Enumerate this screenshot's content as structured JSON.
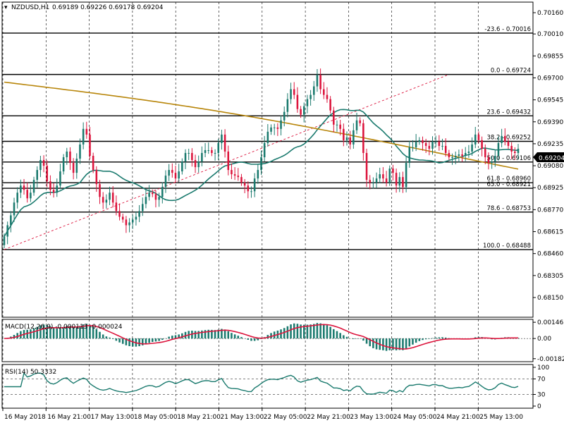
{
  "chart_data": {
    "type": "candlestick",
    "symbol_label": "NZDUSD,H1",
    "ohlc_header": "0.69189 0.69226 0.69178 0.69204",
    "current_price": "0.69204",
    "price_axis": {
      "min": 0.6815,
      "max": 0.7016,
      "ticks": [
        "0.70160",
        "0.70010",
        "0.69855",
        "0.69700",
        "0.69545",
        "0.69390",
        "0.69235",
        "0.69080",
        "0.68925",
        "0.68770",
        "0.68615",
        "0.68460",
        "0.68305",
        "0.68150"
      ],
      "grid": true
    },
    "time_axis": {
      "labels": [
        "16 May 2018",
        "16 May 21:00",
        "17 May 13:00",
        "18 May 05:00",
        "18 May 21:00",
        "21 May 13:00",
        "22 May 05:00",
        "22 May 21:00",
        "23 May 13:00",
        "24 May 05:00",
        "24 May 21:00",
        "25 May 13:00"
      ]
    },
    "fibonacci": {
      "levels": [
        {
          "text": "-23.6 - 0.70016",
          "value": 0.70016
        },
        {
          "text": "0.0 - 0.69724",
          "value": 0.69724
        },
        {
          "text": "23.6 - 0.69432",
          "value": 0.69432
        },
        {
          "text": "38.2 - 0.69252",
          "value": 0.69252
        },
        {
          "text": "50.0 - 0.69106",
          "value": 0.69106
        },
        {
          "text": "61.8 - 0.68960",
          "value": 0.6896
        },
        {
          "text": "65.0 - 0.68921",
          "value": 0.68921
        },
        {
          "text": "78.6 - 0.68753",
          "value": 0.68753
        },
        {
          "text": "100.0 - 0.68488",
          "value": 0.68488
        }
      ],
      "trendline": {
        "from": {
          "bar": 0,
          "price": 0.68488
        },
        "to": {
          "bar": 135,
          "price": 0.69724
        }
      }
    },
    "closes": [
      0.6858,
      0.6866,
      0.6873,
      0.6882,
      0.6889,
      0.6894,
      0.6891,
      0.6885,
      0.6889,
      0.6898,
      0.6905,
      0.6912,
      0.6908,
      0.6897,
      0.6891,
      0.6889,
      0.6894,
      0.6904,
      0.6914,
      0.6918,
      0.691,
      0.6903,
      0.6913,
      0.6923,
      0.6934,
      0.693,
      0.6915,
      0.6905,
      0.6895,
      0.6886,
      0.6882,
      0.6884,
      0.6889,
      0.6882,
      0.6876,
      0.6872,
      0.687,
      0.6866,
      0.6868,
      0.687,
      0.6872,
      0.6876,
      0.6881,
      0.6886,
      0.6889,
      0.6888,
      0.6884,
      0.6886,
      0.6893,
      0.6901,
      0.6905,
      0.6903,
      0.6899,
      0.6904,
      0.6911,
      0.6917,
      0.6917,
      0.6912,
      0.6907,
      0.6911,
      0.6917,
      0.6919,
      0.6919,
      0.6917,
      0.6917,
      0.6924,
      0.693,
      0.6918,
      0.6905,
      0.6902,
      0.6901,
      0.69,
      0.6896,
      0.6894,
      0.689,
      0.689,
      0.6899,
      0.6905,
      0.6914,
      0.6924,
      0.6932,
      0.6935,
      0.6935,
      0.6934,
      0.694,
      0.6946,
      0.6955,
      0.6962,
      0.6958,
      0.6948,
      0.6944,
      0.695,
      0.6955,
      0.6958,
      0.6964,
      0.6972,
      0.6962,
      0.6958,
      0.6955,
      0.6947,
      0.6937,
      0.6937,
      0.6934,
      0.6926,
      0.6928,
      0.6923,
      0.6933,
      0.694,
      0.6938,
      0.6917,
      0.6898,
      0.6896,
      0.6896,
      0.6899,
      0.6902,
      0.6899,
      0.6896,
      0.6906,
      0.6903,
      0.6894,
      0.69,
      0.6893,
      0.691,
      0.6921,
      0.6921,
      0.6925,
      0.6926,
      0.6924,
      0.6922,
      0.692,
      0.6925,
      0.6925,
      0.6922,
      0.6922,
      0.6917,
      0.6914,
      0.6914,
      0.6915,
      0.6916,
      0.6915,
      0.6917,
      0.6918,
      0.6923,
      0.693,
      0.6926,
      0.692,
      0.6914,
      0.691,
      0.6911,
      0.6915,
      0.6924,
      0.6929,
      0.6925,
      0.6922,
      0.6918,
      0.6917,
      0.692
    ],
    "moving_averages": [
      {
        "color": "#1a7a6e",
        "closes_period": 24
      },
      {
        "color": "#b8860b",
        "closes_period": 200,
        "start": 0.6967,
        "end": 0.6908
      }
    ],
    "macd": {
      "label": "MACD(12,26,9) -0.000113 -0.000024",
      "ticks": [
        "0.001465",
        "0.00",
        "-0.001824"
      ],
      "range": [
        -0.0019,
        0.0016
      ],
      "hist_color": "#1a7a6e",
      "signal_color": "#dc143c"
    },
    "rsi": {
      "label": "RSI(14) 50.3332",
      "ticks": [
        "100",
        "70",
        "30",
        "0"
      ],
      "levels": [
        70,
        30
      ],
      "line_color": "#1a7a6e"
    },
    "colors": {
      "bull": "#1a7a6e",
      "bear": "#dc143c",
      "grid": "#000000",
      "fib": "#000000",
      "trendline": "#dc143c"
    }
  }
}
